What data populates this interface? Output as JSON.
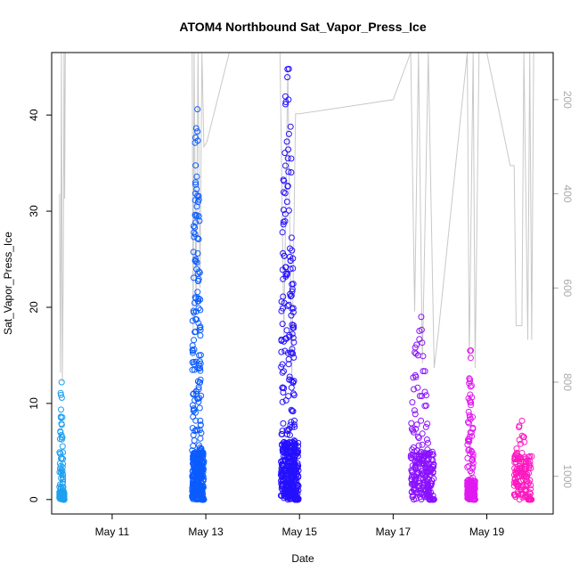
{
  "chart_data": {
    "type": "scatter",
    "title": "ATOM4 Northbound Sat_Vapor_Press_Ice",
    "xlabel": "Date",
    "ylabel": "Sat_Vapor_Press_Ice",
    "xlim": [
      "2018-05-09T17:00",
      "2018-05-20T10:00"
    ],
    "ylim": [
      -1.5,
      46.5
    ],
    "x_ticks": [
      {
        "label": "May 11",
        "value": "2018-05-11T00:00"
      },
      {
        "label": "May 13",
        "value": "2018-05-13T00:00"
      },
      {
        "label": "May 15",
        "value": "2018-05-15T00:00"
      },
      {
        "label": "May 17",
        "value": "2018-05-17T00:00"
      },
      {
        "label": "May 19",
        "value": "2018-05-19T00:00"
      }
    ],
    "y_ticks": [
      0,
      10,
      20,
      30,
      40
    ],
    "secondary_axis": {
      "position": "right",
      "reversed": true,
      "color": "#aaaaaa",
      "ticks": [
        200,
        400,
        600,
        800,
        1000
      ],
      "range": [
        100,
        1080
      ]
    },
    "grid": false,
    "legend": "none",
    "series": [
      {
        "color": "#1ea0f0",
        "start": "2018-05-09T21:00",
        "end": "2018-05-09T23:30",
        "max": 12.2,
        "base_max": 0.8
      },
      {
        "color": "#0b5cff",
        "start": "2018-05-12T17:00",
        "end": "2018-05-12T23:00",
        "max": 40.6,
        "base_max": 5
      },
      {
        "color": "#2510ff",
        "start": "2018-05-14T14:30",
        "end": "2018-05-14T23:30",
        "max": 44.8,
        "base_max": 6
      },
      {
        "color": "#8a10ff",
        "start": "2018-05-17T09:00",
        "end": "2018-05-17T21:00",
        "max": 19.0,
        "base_max": 5
      },
      {
        "color": "#e01af0",
        "start": "2018-05-18T14:00",
        "end": "2018-05-18T18:00",
        "max": 15.5,
        "base_max": 2
      },
      {
        "color": "#ff18c0",
        "start": "2018-05-19T14:00",
        "end": "2018-05-19T23:00",
        "max": 8.2,
        "base_max": 4.5
      }
    ],
    "pressure_line": {
      "color": "#c8c8c8",
      "points": [
        [
          "2018-05-09T21:00",
          400
        ],
        [
          "2018-05-09T21:30",
          780
        ],
        [
          "2018-05-09T22:00",
          100
        ],
        [
          "2018-05-09T22:30",
          800
        ],
        [
          "2018-05-09T23:00",
          540
        ],
        [
          "2018-05-09T23:20",
          100
        ],
        [
          "2018-05-09T23:40",
          410
        ],
        [
          "2018-05-10T00:00",
          100
        ],
        [
          "2018-05-12T17:00",
          100
        ],
        [
          "2018-05-12T17:30",
          700
        ],
        [
          "2018-05-12T18:00",
          100
        ],
        [
          "2018-05-12T19:00",
          650
        ],
        [
          "2018-05-12T20:00",
          100
        ],
        [
          "2018-05-12T21:00",
          600
        ],
        [
          "2018-05-12T22:00",
          100
        ],
        [
          "2018-05-12T23:00",
          300
        ],
        [
          "2018-05-13T00:30",
          290
        ],
        [
          "2018-05-13T12:00",
          100
        ],
        [
          "2018-05-14T14:00",
          100
        ],
        [
          "2018-05-14T16:00",
          700
        ],
        [
          "2018-05-14T18:00",
          130
        ],
        [
          "2018-05-14T20:00",
          800
        ],
        [
          "2018-05-14T22:00",
          230
        ],
        [
          "2018-05-15T00:00",
          230
        ],
        [
          "2018-05-17T00:00",
          200
        ],
        [
          "2018-05-17T09:00",
          100
        ],
        [
          "2018-05-17T11:00",
          650
        ],
        [
          "2018-05-17T13:00",
          100
        ],
        [
          "2018-05-17T15:00",
          760
        ],
        [
          "2018-05-17T18:00",
          100
        ],
        [
          "2018-05-17T21:00",
          770
        ],
        [
          "2018-05-17T23:00",
          700
        ],
        [
          "2018-05-18T14:00",
          100
        ],
        [
          "2018-05-18T15:00",
          750
        ],
        [
          "2018-05-18T17:00",
          100
        ],
        [
          "2018-05-18T18:00",
          770
        ],
        [
          "2018-05-18T20:00",
          100
        ],
        [
          "2018-05-19T00:00",
          100
        ],
        [
          "2018-05-19T12:00",
          340
        ],
        [
          "2018-05-19T14:00",
          340
        ],
        [
          "2018-05-19T15:00",
          680
        ],
        [
          "2018-05-19T18:00",
          680
        ],
        [
          "2018-05-19T19:00",
          100
        ],
        [
          "2018-05-19T21:00",
          710
        ],
        [
          "2018-05-19T22:00",
          100
        ],
        [
          "2018-05-19T23:00",
          710
        ],
        [
          "2018-05-20T00:00",
          100
        ]
      ]
    }
  }
}
